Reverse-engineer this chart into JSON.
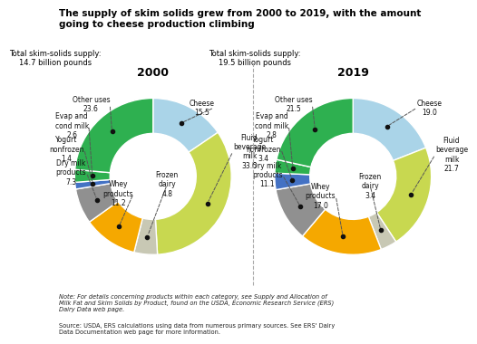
{
  "title": "The supply of skim solids grew from 2000 to 2019, with the amount\ngoing to cheese production climbing",
  "charts": [
    {
      "year": "2000",
      "subtitle": "Total skim-solids supply:\n14.7 billion pounds",
      "labels": [
        "Cheese",
        "Fluid beverage\nmilk",
        "Frozen\ndairy",
        "Whey\nproducts",
        "Dry milk\nproducts",
        "Yogurt\nnonfrozen",
        "Evap and\ncond milk",
        "Other uses"
      ],
      "values": [
        15.5,
        33.6,
        4.8,
        11.2,
        7.3,
        1.4,
        2.6,
        23.6
      ],
      "colors": [
        "#aad4e8",
        "#c8d850",
        "#c8c8b0",
        "#f0a800",
        "#808080",
        "#4472c4",
        "#3aa832",
        "#3aa832"
      ]
    },
    {
      "year": "2019",
      "subtitle": "Total skim-solids supply:\n19.5 billion pounds",
      "labels": [
        "Cheese",
        "Fluid beverage\nmilk",
        "Frozen\ndairy",
        "Whey\nproducts",
        "Dry milk\nproducts",
        "Yogurt\nnonfrozen",
        "Evap and\ncond milk",
        "Other uses"
      ],
      "values": [
        19.0,
        21.7,
        3.4,
        17.0,
        11.1,
        3.4,
        2.8,
        21.5
      ],
      "colors": [
        "#aad4e8",
        "#c8d850",
        "#c8c8b0",
        "#f0a800",
        "#808080",
        "#4472c4",
        "#3aa832",
        "#3aa832"
      ]
    }
  ],
  "colors": {
    "Cheese": "#aad4e8",
    "Fluid beverage milk": "#c8d850",
    "Frozen dairy": "#c8c8b4",
    "Whey products": "#f5a800",
    "Dry milk products": "#909090",
    "Yogurt nonfrozen": "#4472c4",
    "Evap and cond milk": "#2eb050",
    "Other uses": "#2eb050"
  },
  "note": "Note: For details concerning products within each category, see Supply and Allocation of\nMilk Fat and Skim Solids by Product, found on the USDA, Economic Research Service (ERS)\nDairy Data web page.",
  "source": "Source: USDA, ERS calculations using data from numerous primary sources. See ERS' Dairy\nData Documentation web page for more information.",
  "background_color": "#ffffff",
  "wedge_colors": [
    "#aad4e8",
    "#c8d850",
    "#c8c8b4",
    "#f5a800",
    "#909090",
    "#4472c4",
    "#2eb050",
    "#2eb050"
  ]
}
